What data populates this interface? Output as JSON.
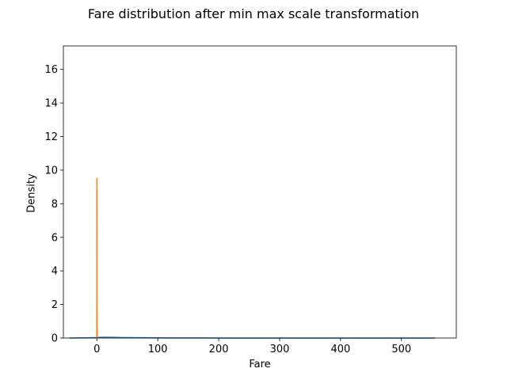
{
  "chart_data": {
    "type": "line",
    "title": "Fare distribution after min max scale transformation",
    "xlabel": "Fare",
    "ylabel": "Density",
    "xlim": [
      -55,
      590
    ],
    "ylim": [
      0,
      17.4
    ],
    "xticks": [
      0,
      100,
      200,
      300,
      400,
      500
    ],
    "yticks": [
      0,
      2,
      4,
      6,
      8,
      10,
      12,
      14,
      16
    ],
    "grid": false,
    "legend": "none",
    "series": [
      {
        "color": "#1f77b4",
        "x": [
          -45,
          -20,
          0,
          10,
          20,
          40,
          80,
          120,
          200,
          300,
          400,
          500,
          555
        ],
        "y": [
          0.0,
          0.01,
          0.03,
          0.05,
          0.045,
          0.03,
          0.015,
          0.008,
          0.003,
          0.002,
          0.001,
          0.001,
          0.0
        ]
      },
      {
        "color": "#ff7f0e",
        "x": [
          -0.15,
          -0.05,
          0.0,
          0.05,
          0.1,
          0.2,
          0.3,
          0.5,
          0.7,
          1.0,
          1.1
        ],
        "y": [
          0.0,
          1.5,
          7.5,
          9.5,
          7.0,
          2.5,
          1.0,
          0.3,
          0.1,
          0.02,
          0.0
        ]
      }
    ]
  }
}
